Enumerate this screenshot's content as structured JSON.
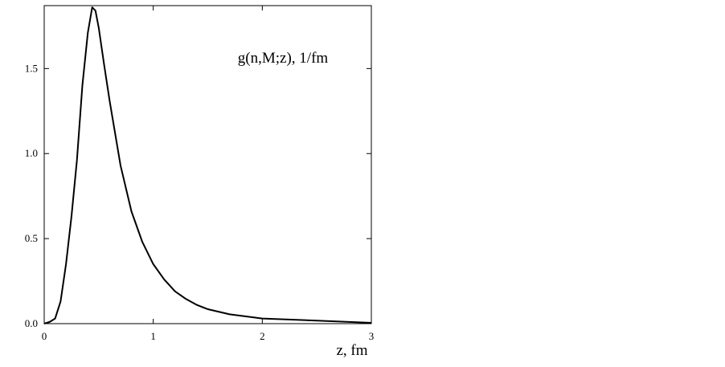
{
  "chart_data": {
    "type": "line",
    "annotation": "g(n,M;z), 1/fm",
    "x_label": "z, fm",
    "x": [
      0,
      0.05,
      0.1,
      0.15,
      0.2,
      0.25,
      0.3,
      0.35,
      0.4,
      0.44,
      0.47,
      0.5,
      0.55,
      0.6,
      0.7,
      0.8,
      0.9,
      1.0,
      1.1,
      1.2,
      1.3,
      1.4,
      1.5,
      1.7,
      2.0,
      2.5,
      3.0
    ],
    "series": [
      {
        "color": "#000000",
        "values": [
          0,
          0.01,
          0.03,
          0.13,
          0.35,
          0.63,
          0.96,
          1.4,
          1.71,
          1.86,
          1.84,
          1.74,
          1.52,
          1.31,
          0.93,
          0.66,
          0.48,
          0.35,
          0.26,
          0.19,
          0.145,
          0.11,
          0.085,
          0.055,
          0.03,
          0.018,
          0.005
        ]
      }
    ],
    "xlim": [
      0,
      3
    ],
    "ylim": [
      0,
      1.87
    ],
    "xticks": [
      0,
      1,
      2,
      3
    ],
    "yticks": [
      {
        "value": 0,
        "label": "0.0"
      },
      0.5,
      {
        "value": 1,
        "label": "1.0"
      },
      1.5
    ]
  }
}
